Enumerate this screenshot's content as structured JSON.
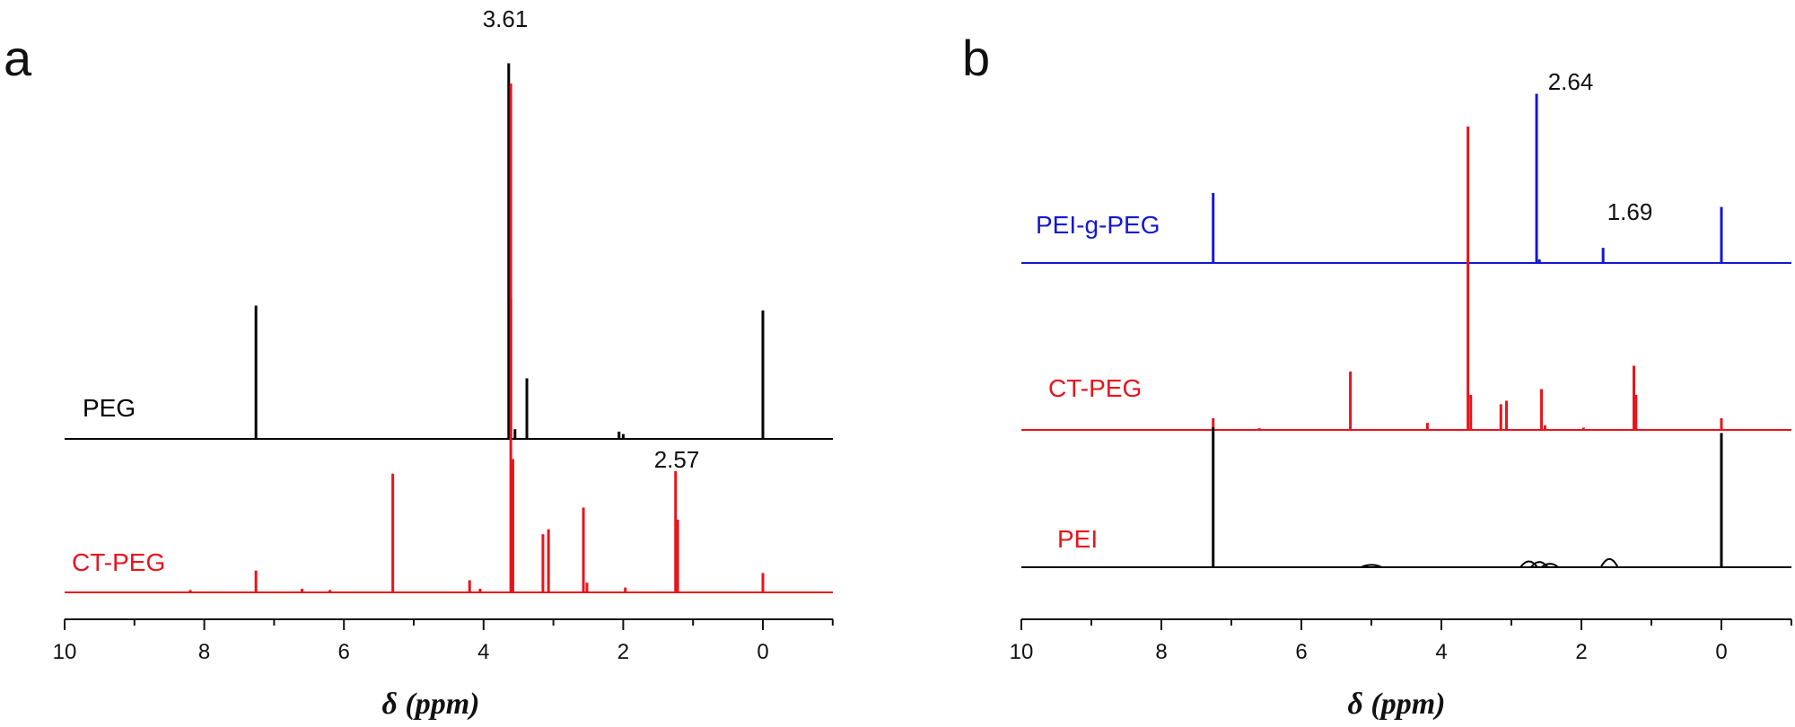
{
  "chart_data": [
    {
      "panel": "a",
      "type": "line",
      "title": "",
      "xlabel": "δ (ppm)",
      "ylabel": "",
      "xlim": [
        10,
        -1
      ],
      "x_reversed": true,
      "xticks": [
        10,
        8,
        6,
        4,
        2,
        0
      ],
      "grid": false,
      "series": [
        {
          "name": "PEG",
          "color": "#000000",
          "peaks": [
            {
              "ppm": 7.26,
              "height": 0.55
            },
            {
              "ppm": 3.64,
              "height": 1.55
            },
            {
              "ppm": 3.61,
              "height": 0.58
            },
            {
              "ppm": 3.55,
              "height": 0.04
            },
            {
              "ppm": 3.38,
              "height": 0.25
            },
            {
              "ppm": 2.06,
              "height": 0.03
            },
            {
              "ppm": 2.0,
              "height": 0.02
            },
            {
              "ppm": 0.0,
              "height": 0.53
            }
          ]
        },
        {
          "name": "CT-PEG",
          "color": "#e8141c",
          "peaks": [
            {
              "ppm": 8.2,
              "height": 0.01
            },
            {
              "ppm": 7.26,
              "height": 0.09
            },
            {
              "ppm": 6.6,
              "height": 0.015
            },
            {
              "ppm": 6.2,
              "height": 0.01
            },
            {
              "ppm": 5.3,
              "height": 0.49
            },
            {
              "ppm": 4.2,
              "height": 0.05
            },
            {
              "ppm": 4.05,
              "height": 0.015
            },
            {
              "ppm": 3.61,
              "height": 2.1
            },
            {
              "ppm": 3.58,
              "height": 0.55
            },
            {
              "ppm": 3.15,
              "height": 0.24
            },
            {
              "ppm": 3.07,
              "height": 0.26
            },
            {
              "ppm": 2.57,
              "height": 0.35
            },
            {
              "ppm": 2.52,
              "height": 0.04
            },
            {
              "ppm": 1.97,
              "height": 0.02
            },
            {
              "ppm": 1.25,
              "height": 0.5
            },
            {
              "ppm": 1.22,
              "height": 0.3
            },
            {
              "ppm": 0.0,
              "height": 0.08
            }
          ]
        }
      ],
      "annotations": [
        {
          "text": "3.61",
          "ppm": 3.61
        },
        {
          "text": "2.57",
          "ppm": 1.25
        }
      ]
    },
    {
      "panel": "b",
      "type": "line",
      "title": "",
      "xlabel": "δ (ppm)",
      "ylabel": "",
      "xlim": [
        10,
        -1
      ],
      "x_reversed": true,
      "xticks": [
        10,
        8,
        6,
        4,
        2,
        0
      ],
      "grid": false,
      "series": [
        {
          "name": "PEI-g-PEG",
          "color": "#1418d0",
          "peaks": [
            {
              "ppm": 7.26,
              "height": 0.6
            },
            {
              "ppm": 2.64,
              "height": 1.45
            },
            {
              "ppm": 2.6,
              "height": 0.03
            },
            {
              "ppm": 1.69,
              "height": 0.13
            },
            {
              "ppm": 0.0,
              "height": 0.48
            }
          ]
        },
        {
          "name": "CT-PEG",
          "color": "#e8141c",
          "peaks": [
            {
              "ppm": 7.26,
              "height": 0.1
            },
            {
              "ppm": 6.6,
              "height": 0.015
            },
            {
              "ppm": 5.3,
              "height": 0.5
            },
            {
              "ppm": 4.2,
              "height": 0.06
            },
            {
              "ppm": 3.62,
              "height": 2.6
            },
            {
              "ppm": 3.58,
              "height": 0.3
            },
            {
              "ppm": 3.15,
              "height": 0.22
            },
            {
              "ppm": 3.07,
              "height": 0.25
            },
            {
              "ppm": 2.57,
              "height": 0.35
            },
            {
              "ppm": 2.52,
              "height": 0.04
            },
            {
              "ppm": 1.97,
              "height": 0.02
            },
            {
              "ppm": 1.25,
              "height": 0.55
            },
            {
              "ppm": 1.22,
              "height": 0.3
            },
            {
              "ppm": 0.0,
              "height": 0.1
            }
          ]
        },
        {
          "name": "PEI",
          "color": "#000000",
          "peaks": [
            {
              "ppm": 7.26,
              "height": 1.2
            },
            {
              "ppm": 0.0,
              "height": 1.15
            },
            {
              "ppm": 0.0,
              "height": 0.9
            }
          ],
          "humps": [
            {
              "ppm": 5.0,
              "height": 0.02,
              "width": 0.15
            },
            {
              "ppm": 2.75,
              "height": 0.05,
              "width": 0.12
            },
            {
              "ppm": 2.6,
              "height": 0.045,
              "width": 0.12
            },
            {
              "ppm": 2.45,
              "height": 0.03,
              "width": 0.12
            },
            {
              "ppm": 1.6,
              "height": 0.07,
              "width": 0.12
            }
          ]
        }
      ],
      "annotations": [
        {
          "text": "2.64",
          "ppm": 2.64
        },
        {
          "text": "1.69",
          "ppm": 1.69
        }
      ]
    }
  ]
}
